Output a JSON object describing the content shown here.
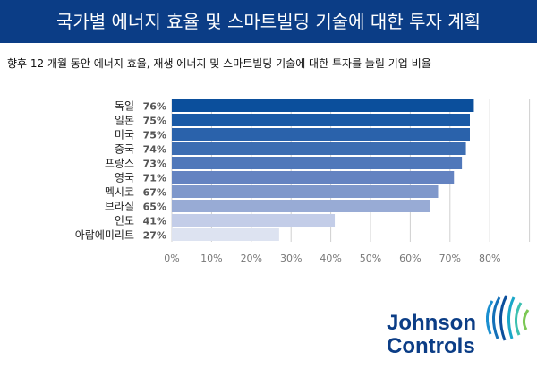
{
  "title": "국가별 에너지 효율 및 스마트빌딩 기술에 대한 투자 계획",
  "subtitle": "향후 12 개월 동안 에너지 효율, 재생 에너지 및 스마트빌딩 기술에 대한 투자를 늘릴 기업 비율",
  "chart_data": {
    "type": "bar",
    "orientation": "horizontal",
    "title": "국가별 에너지 효율 및 스마트빌딩 기술에 대한 투자 계획",
    "categories": [
      "독일",
      "일본",
      "미국",
      "중국",
      "프랑스",
      "영국",
      "멕시코",
      "브라질",
      "인도",
      "아랍에미리트"
    ],
    "values": [
      76,
      75,
      75,
      74,
      73,
      71,
      67,
      65,
      41,
      27
    ],
    "value_labels": [
      "76%",
      "75%",
      "75%",
      "74%",
      "73%",
      "71%",
      "67%",
      "65%",
      "41%",
      "27%"
    ],
    "xticks": [
      "0%",
      "10%",
      "20%",
      "30%",
      "40%",
      "50%",
      "60%",
      "70%",
      "80%"
    ],
    "xlim": [
      0,
      90
    ],
    "grid": true,
    "colors": [
      "#0b4f9c",
      "#1a5aa6",
      "#2a62ab",
      "#3c6db2",
      "#5078ba",
      "#6483c1",
      "#7f98cb",
      "#98abd5",
      "#c3cde8",
      "#dde3f1"
    ]
  },
  "logo": {
    "line1": "Johnson",
    "line2": "Controls"
  }
}
